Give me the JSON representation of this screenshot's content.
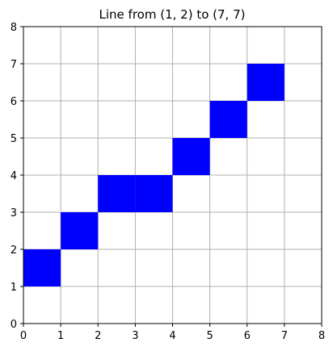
{
  "chart_data": {
    "type": "heatmap",
    "title": "Line from (1, 2) to (7, 7)",
    "xlabel": "",
    "ylabel": "",
    "xlim": [
      0,
      8
    ],
    "ylim": [
      0,
      8
    ],
    "xticks": [
      0,
      1,
      2,
      3,
      4,
      5,
      6,
      7,
      8
    ],
    "yticks": [
      0,
      1,
      2,
      3,
      4,
      5,
      6,
      7,
      8
    ],
    "grid": true,
    "cells": [
      {
        "x": 0,
        "y": 1
      },
      {
        "x": 1,
        "y": 2
      },
      {
        "x": 2,
        "y": 3
      },
      {
        "x": 3,
        "y": 3
      },
      {
        "x": 4,
        "y": 4
      },
      {
        "x": 5,
        "y": 5
      },
      {
        "x": 6,
        "y": 6
      }
    ],
    "cell_color": "#0000ff",
    "grid_color": "#b0b0b0",
    "axis_color": "#000000"
  }
}
